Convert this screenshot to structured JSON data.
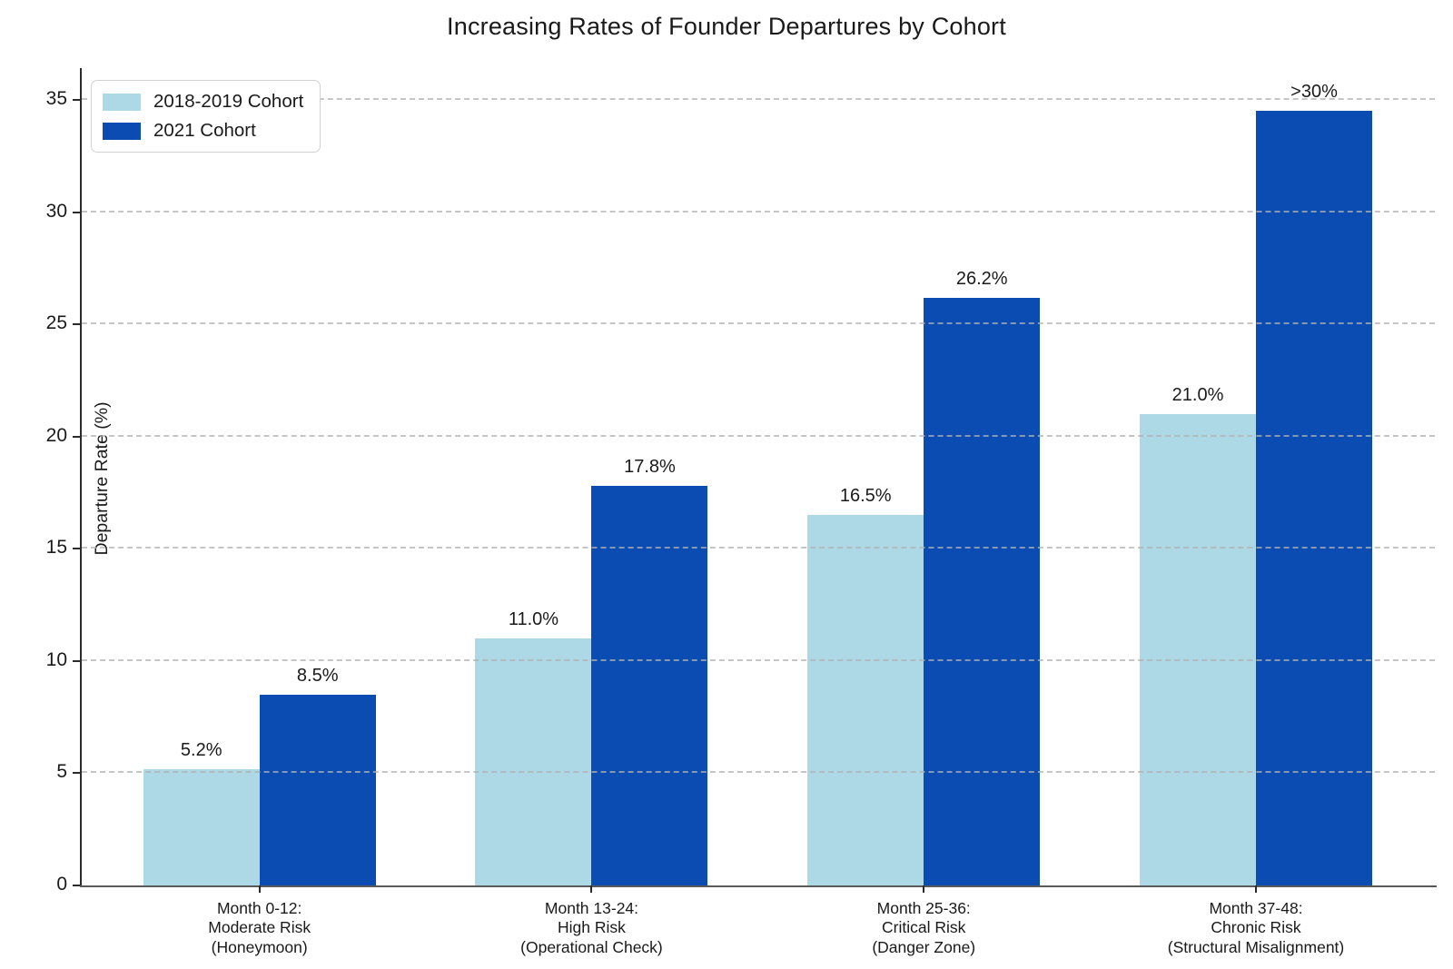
{
  "title": "Increasing Rates of Founder Departures by Cohort",
  "colors": {
    "series_light": "#ADD8E6",
    "series_dark": "#0B4CB2",
    "grid": "#b2b2b2",
    "axis": "#2b2b2b",
    "bottom_spine": "#595959",
    "background": "#ffffff",
    "text": "#1a1a1a"
  },
  "legend": {
    "position": "upper left",
    "items": [
      {
        "label": "2018-2019 Cohort",
        "color": "#ADD8E6"
      },
      {
        "label": "2021 Cohort",
        "color": "#0B4CB2"
      }
    ]
  },
  "chart_data": {
    "type": "bar",
    "title": "Increasing Rates of Founder Departures by Cohort",
    "xlabel": "",
    "ylabel": "Departure Rate (%)",
    "ylim": [
      0,
      36.42
    ],
    "y_ticks": [
      0,
      5,
      10,
      15,
      20,
      25,
      30,
      35
    ],
    "grid": "horizontal dashed",
    "legend_position": "upper left",
    "categories": [
      [
        "Month 0-12:",
        "Moderate Risk",
        "(Honeymoon)"
      ],
      [
        "Month 13-24:",
        "High Risk",
        "(Operational Check)"
      ],
      [
        "Month 25-36:",
        "Critical Risk",
        "(Danger Zone)"
      ],
      [
        "Month 37-48:",
        "Chronic Risk",
        "(Structural Misalignment)"
      ]
    ],
    "series": [
      {
        "name": "2018-2019 Cohort",
        "color": "#ADD8E6",
        "values": [
          5.2,
          11.0,
          16.5,
          21.0
        ],
        "labels": [
          "5.2%",
          "11.0%",
          "16.5%",
          "21.0%"
        ]
      },
      {
        "name": "2021 Cohort",
        "color": "#0B4CB2",
        "values": [
          8.5,
          17.8,
          26.2,
          34.5
        ],
        "labels": [
          "8.5%",
          "17.8%",
          "26.2%",
          ">30%"
        ]
      }
    ]
  }
}
